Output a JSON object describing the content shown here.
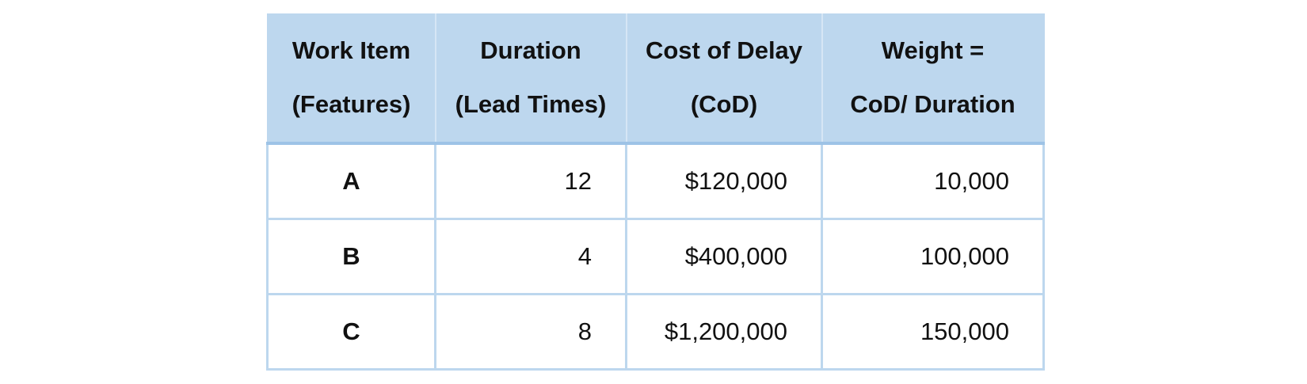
{
  "table": {
    "headers": [
      {
        "line1": "Work Item",
        "line2": "(Features)"
      },
      {
        "line1": "Duration",
        "line2": "(Lead Times)"
      },
      {
        "line1": "Cost of Delay",
        "line2": "(CoD)"
      },
      {
        "line1": "Weight =",
        "line2": "CoD/ Duration"
      }
    ],
    "rows": [
      {
        "item": "A",
        "duration": "12",
        "cod": "$120,000",
        "weight": "10,000"
      },
      {
        "item": "B",
        "duration": "4",
        "cod": "$400,000",
        "weight": "100,000"
      },
      {
        "item": "C",
        "duration": "8",
        "cod": "$1,200,000",
        "weight": "150,000"
      }
    ]
  },
  "colors": {
    "header_background": "#bdd7ee",
    "grid_lines": "#bdd7ee",
    "text": "#111111"
  }
}
